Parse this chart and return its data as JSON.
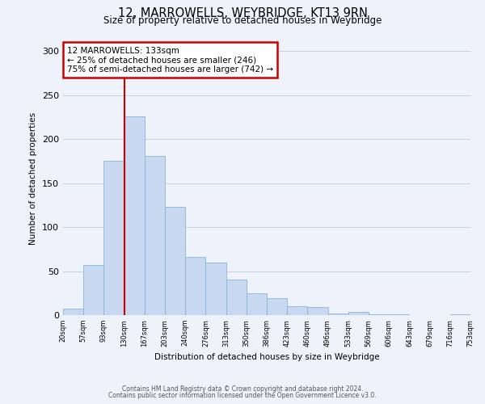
{
  "title": "12, MARROWELLS, WEYBRIDGE, KT13 9RN",
  "subtitle": "Size of property relative to detached houses in Weybridge",
  "xlabel": "Distribution of detached houses by size in Weybridge",
  "ylabel": "Number of detached properties",
  "bar_labels": [
    "20sqm",
    "57sqm",
    "93sqm",
    "130sqm",
    "167sqm",
    "203sqm",
    "240sqm",
    "276sqm",
    "313sqm",
    "350sqm",
    "386sqm",
    "423sqm",
    "460sqm",
    "496sqm",
    "533sqm",
    "569sqm",
    "606sqm",
    "643sqm",
    "679sqm",
    "716sqm",
    "753sqm"
  ],
  "bar_values": [
    7,
    57,
    175,
    226,
    181,
    123,
    66,
    60,
    40,
    25,
    19,
    10,
    9,
    2,
    4,
    1,
    1,
    0,
    0,
    1,
    0
  ],
  "bar_color": "#c8d8f0",
  "bar_edge_color": "#8ab4d8",
  "vline_x": 3,
  "vline_color": "#cc0000",
  "ylim": [
    0,
    310
  ],
  "yticks": [
    0,
    50,
    100,
    150,
    200,
    250,
    300
  ],
  "annotation_title": "12 MARROWELLS: 133sqm",
  "annotation_line1": "← 25% of detached houses are smaller (246)",
  "annotation_line2": "75% of semi-detached houses are larger (742) →",
  "annotation_box_color": "#ffffff",
  "annotation_box_edge": "#cc0000",
  "footer_line1": "Contains HM Land Registry data © Crown copyright and database right 2024.",
  "footer_line2": "Contains public sector information licensed under the Open Government Licence v3.0.",
  "background_color": "#eef2fb",
  "plot_bg_color": "#eef2fb",
  "grid_color": "#c5cfe8"
}
